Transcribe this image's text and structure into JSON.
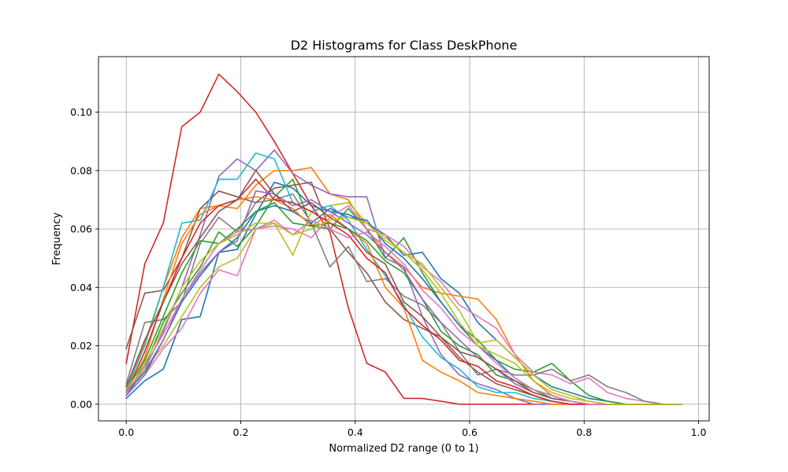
{
  "chart_data": {
    "type": "line",
    "title": "D2 Histograms for Class DeskPhone",
    "xlabel": "Normalized D2 range (0 to 1)",
    "ylabel": "Frequency",
    "xlim": [
      -0.0485,
      1.0185
    ],
    "ylim": [
      -0.0057,
      0.119
    ],
    "xticks": [
      0.0,
      0.2,
      0.4,
      0.6,
      0.8,
      1.0
    ],
    "xtick_labels": [
      "0.0",
      "0.2",
      "0.4",
      "0.6",
      "0.8",
      "1.0"
    ],
    "yticks": [
      0.0,
      0.02,
      0.04,
      0.06,
      0.08,
      0.1
    ],
    "ytick_labels": [
      "0.00",
      "0.02",
      "0.04",
      "0.06",
      "0.08",
      "0.10"
    ],
    "grid": true,
    "x": [
      0.0,
      0.0323,
      0.0647,
      0.097,
      0.1293,
      0.1617,
      0.194,
      0.2263,
      0.2587,
      0.291,
      0.3233,
      0.3557,
      0.388,
      0.4203,
      0.4527,
      0.485,
      0.5173,
      0.5497,
      0.582,
      0.6143,
      0.6467,
      0.679,
      0.7113,
      0.7437,
      0.776,
      0.8083,
      0.8407,
      0.873,
      0.9053,
      0.9377,
      0.97
    ],
    "series": [
      {
        "color": "#1f77b4",
        "values": [
          0.002,
          0.008,
          0.012,
          0.029,
          0.03,
          0.052,
          0.053,
          0.065,
          0.076,
          0.074,
          0.068,
          0.066,
          0.065,
          0.062,
          0.058,
          0.051,
          0.052,
          0.043,
          0.038,
          0.028,
          0.022,
          0.016,
          0.01,
          0.006,
          0.004,
          0.002,
          0.001,
          0.0,
          0.0,
          0.0,
          0.0
        ]
      },
      {
        "color": "#ff7f0e",
        "values": [
          0.005,
          0.021,
          0.04,
          0.057,
          0.067,
          0.068,
          0.067,
          0.075,
          0.08,
          0.08,
          0.081,
          0.072,
          0.07,
          0.06,
          0.052,
          0.047,
          0.04,
          0.038,
          0.037,
          0.036,
          0.029,
          0.017,
          0.008,
          0.003,
          0.001,
          0.0,
          0.0,
          0.0,
          0.0,
          0.0,
          0.0
        ]
      },
      {
        "color": "#2ca02c",
        "values": [
          0.006,
          0.013,
          0.028,
          0.038,
          0.047,
          0.059,
          0.054,
          0.061,
          0.071,
          0.077,
          0.061,
          0.06,
          0.067,
          0.06,
          0.05,
          0.057,
          0.045,
          0.035,
          0.027,
          0.022,
          0.015,
          0.012,
          0.011,
          0.014,
          0.008,
          0.003,
          0.001,
          0.0,
          0.0,
          0.0,
          0.0
        ]
      },
      {
        "color": "#d62728",
        "values": [
          0.014,
          0.048,
          0.062,
          0.095,
          0.1,
          0.113,
          0.107,
          0.1,
          0.09,
          0.079,
          0.068,
          0.059,
          0.033,
          0.014,
          0.011,
          0.002,
          0.002,
          0.001,
          0.0,
          0.0,
          0.0,
          0.0,
          0.0,
          0.0,
          0.0,
          0.0,
          0.0,
          0.0,
          0.0,
          0.0,
          0.0
        ]
      },
      {
        "color": "#9467bd",
        "values": [
          0.003,
          0.012,
          0.025,
          0.04,
          0.058,
          0.078,
          0.084,
          0.08,
          0.087,
          0.079,
          0.075,
          0.072,
          0.071,
          0.071,
          0.05,
          0.047,
          0.03,
          0.017,
          0.01,
          0.007,
          0.005,
          0.002,
          0.0,
          0.0,
          0.0,
          0.0,
          0.0,
          0.0,
          0.0,
          0.0,
          0.0
        ]
      },
      {
        "color": "#8c564b",
        "values": [
          0.019,
          0.038,
          0.039,
          0.05,
          0.067,
          0.073,
          0.071,
          0.069,
          0.074,
          0.075,
          0.076,
          0.06,
          0.052,
          0.045,
          0.035,
          0.029,
          0.026,
          0.023,
          0.016,
          0.011,
          0.007,
          0.005,
          0.003,
          0.001,
          0.0,
          0.0,
          0.0,
          0.0,
          0.0,
          0.0,
          0.0
        ]
      },
      {
        "color": "#e377c2",
        "values": [
          0.003,
          0.01,
          0.019,
          0.026,
          0.038,
          0.046,
          0.044,
          0.06,
          0.061,
          0.06,
          0.057,
          0.064,
          0.068,
          0.06,
          0.058,
          0.054,
          0.047,
          0.042,
          0.034,
          0.03,
          0.026,
          0.017,
          0.011,
          0.01,
          0.007,
          0.009,
          0.004,
          0.002,
          0.001,
          0.0,
          0.0
        ]
      },
      {
        "color": "#7f7f7f",
        "values": [
          0.007,
          0.028,
          0.029,
          0.035,
          0.055,
          0.064,
          0.059,
          0.069,
          0.07,
          0.072,
          0.062,
          0.047,
          0.054,
          0.042,
          0.043,
          0.037,
          0.034,
          0.028,
          0.018,
          0.01,
          0.012,
          0.01,
          0.01,
          0.012,
          0.008,
          0.01,
          0.006,
          0.004,
          0.001,
          0.0,
          0.0
        ]
      },
      {
        "color": "#bcbd22",
        "values": [
          0.004,
          0.012,
          0.02,
          0.03,
          0.04,
          0.047,
          0.05,
          0.06,
          0.062,
          0.051,
          0.066,
          0.068,
          0.069,
          0.062,
          0.057,
          0.052,
          0.048,
          0.04,
          0.032,
          0.021,
          0.022,
          0.016,
          0.01,
          0.005,
          0.003,
          0.001,
          0.0,
          0.0,
          0.0,
          0.0,
          0.0
        ]
      },
      {
        "color": "#17becf",
        "values": [
          0.005,
          0.02,
          0.04,
          0.062,
          0.063,
          0.077,
          0.077,
          0.086,
          0.084,
          0.069,
          0.066,
          0.068,
          0.063,
          0.053,
          0.044,
          0.034,
          0.023,
          0.016,
          0.012,
          0.006,
          0.004,
          0.004,
          0.002,
          0.001,
          0.0,
          0.0,
          0.0,
          0.0,
          0.0,
          0.0,
          0.0
        ]
      },
      {
        "color": "#1f77b4",
        "values": [
          0.004,
          0.011,
          0.022,
          0.035,
          0.044,
          0.052,
          0.057,
          0.066,
          0.068,
          0.066,
          0.062,
          0.067,
          0.064,
          0.063,
          0.055,
          0.05,
          0.043,
          0.035,
          0.027,
          0.02,
          0.015,
          0.009,
          0.005,
          0.003,
          0.001,
          0.0,
          0.0,
          0.0,
          0.0,
          0.0,
          0.0
        ]
      },
      {
        "color": "#ff7f0e",
        "values": [
          0.004,
          0.016,
          0.036,
          0.055,
          0.065,
          0.068,
          0.07,
          0.071,
          0.07,
          0.067,
          0.061,
          0.065,
          0.06,
          0.055,
          0.04,
          0.033,
          0.015,
          0.011,
          0.008,
          0.004,
          0.003,
          0.002,
          0.001,
          0.0,
          0.0,
          0.0,
          0.0,
          0.0,
          0.0,
          0.0,
          0.0
        ]
      },
      {
        "color": "#2ca02c",
        "values": [
          0.005,
          0.015,
          0.03,
          0.045,
          0.056,
          0.055,
          0.06,
          0.066,
          0.069,
          0.062,
          0.061,
          0.062,
          0.06,
          0.056,
          0.049,
          0.045,
          0.036,
          0.025,
          0.02,
          0.017,
          0.01,
          0.008,
          0.005,
          0.002,
          0.001,
          0.0,
          0.0,
          0.0,
          0.0,
          0.0,
          0.0
        ]
      },
      {
        "color": "#d62728",
        "values": [
          0.004,
          0.018,
          0.035,
          0.05,
          0.062,
          0.068,
          0.07,
          0.077,
          0.07,
          0.069,
          0.066,
          0.062,
          0.058,
          0.05,
          0.045,
          0.033,
          0.027,
          0.022,
          0.015,
          0.013,
          0.008,
          0.006,
          0.003,
          0.001,
          0.0,
          0.0,
          0.0,
          0.0,
          0.0,
          0.0,
          0.0
        ]
      },
      {
        "color": "#9467bd",
        "values": [
          0.003,
          0.01,
          0.022,
          0.036,
          0.045,
          0.052,
          0.056,
          0.073,
          0.072,
          0.068,
          0.07,
          0.066,
          0.062,
          0.058,
          0.052,
          0.046,
          0.036,
          0.028,
          0.022,
          0.016,
          0.012,
          0.007,
          0.004,
          0.002,
          0.001,
          0.0,
          0.0,
          0.0,
          0.0,
          0.0,
          0.0
        ]
      },
      {
        "color": "#8c564b",
        "values": [
          0.006,
          0.022,
          0.035,
          0.048,
          0.057,
          0.066,
          0.07,
          0.08,
          0.072,
          0.066,
          0.069,
          0.064,
          0.06,
          0.052,
          0.048,
          0.035,
          0.03,
          0.023,
          0.018,
          0.016,
          0.012,
          0.008,
          0.004,
          0.002,
          0.001,
          0.0,
          0.0,
          0.0,
          0.0,
          0.0,
          0.0
        ]
      },
      {
        "color": "#e377c2",
        "values": [
          0.004,
          0.013,
          0.024,
          0.036,
          0.046,
          0.055,
          0.059,
          0.06,
          0.063,
          0.058,
          0.063,
          0.06,
          0.057,
          0.059,
          0.054,
          0.048,
          0.039,
          0.033,
          0.025,
          0.02,
          0.014,
          0.009,
          0.005,
          0.003,
          0.001,
          0.0,
          0.0,
          0.0,
          0.0,
          0.0,
          0.0
        ]
      },
      {
        "color": "#bcbd22",
        "values": [
          0.005,
          0.014,
          0.026,
          0.04,
          0.049,
          0.055,
          0.058,
          0.062,
          0.062,
          0.058,
          0.06,
          0.063,
          0.064,
          0.062,
          0.056,
          0.052,
          0.046,
          0.038,
          0.028,
          0.02,
          0.017,
          0.014,
          0.008,
          0.004,
          0.002,
          0.001,
          0.0,
          0.0,
          0.0,
          0.0,
          0.0
        ]
      }
    ]
  }
}
